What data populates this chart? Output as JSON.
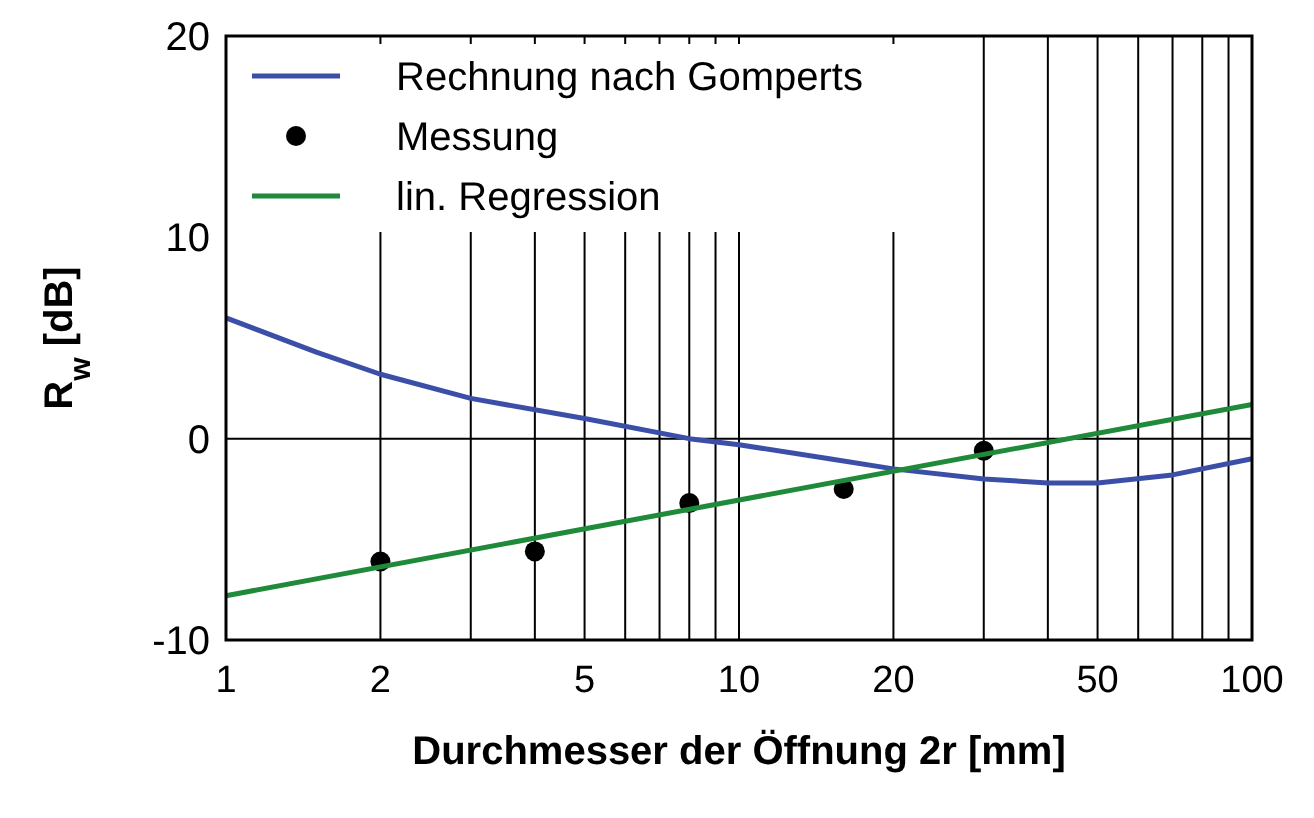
{
  "chart_data": {
    "type": "line",
    "xlabel": "Durchmesser der Öffnung 2r [mm]",
    "ylabel": "R$_{w}$ [dB]",
    "log": "x",
    "grid": "x",
    "legend": "top left",
    "xlim": [
      1,
      100
    ],
    "xticks": [
      1,
      2,
      {
        "value": 3,
        "label": null
      },
      {
        "value": 4,
        "label": null
      },
      5,
      {
        "value": 6,
        "label": null
      },
      {
        "value": 7,
        "label": null
      },
      {
        "value": 8,
        "label": null
      },
      {
        "value": 9,
        "label": null
      },
      10,
      20,
      {
        "value": 30,
        "label": null
      },
      {
        "value": 40,
        "label": null
      },
      50,
      {
        "value": 60,
        "label": null
      },
      {
        "value": 70,
        "label": null
      },
      {
        "value": 80,
        "label": null
      },
      {
        "value": 90,
        "label": null
      },
      100
    ],
    "ylim": [
      -10,
      20
    ],
    "yticks": [
      -10,
      0,
      10,
      20
    ],
    "ref_lines": [
      {
        "axis": "y",
        "value": 0,
        "color": "#000000"
      }
    ],
    "series": [
      {
        "name": "Rechnung nach Gomperts",
        "color": "#3c4fa8",
        "x": [
          1,
          1.5,
          2,
          3,
          5,
          8,
          10,
          15,
          20,
          30,
          40,
          50,
          70,
          100
        ],
        "values": [
          6,
          4.3,
          3.2,
          2,
          1,
          0,
          -0.3,
          -1,
          -1.5,
          -2,
          -2.2,
          -2.2,
          -1.8,
          -1
        ]
      },
      {
        "name": "Messung",
        "type": "scatter",
        "marker": "circle",
        "color": "#000000",
        "x": [
          2,
          4,
          8,
          16,
          30
        ],
        "values": [
          -6.1,
          -5.6,
          -3.2,
          -2.5,
          -0.6
        ]
      },
      {
        "name": "lin. Regression",
        "color": "#1f8a3a",
        "x": [
          1,
          100
        ],
        "values": [
          -7.8,
          1.7
        ]
      }
    ]
  }
}
